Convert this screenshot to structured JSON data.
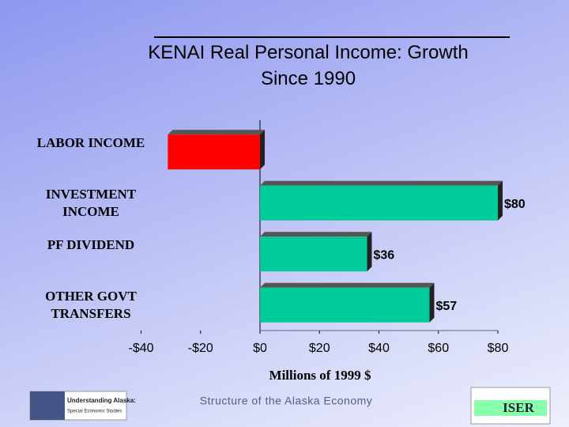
{
  "chart_data": {
    "type": "hbar",
    "title": "KENAI Real Personal Income: Growth Since 1990",
    "categories": [
      "LABOR INCOME",
      "INVESTMENT INCOME",
      "PF DIVIDEND",
      "OTHER GOVT TRANSFERS"
    ],
    "values": [
      -31,
      80,
      36,
      57
    ],
    "value_labels": [
      null,
      "$80",
      "$36",
      "$57"
    ],
    "colors": [
      "#ff0000",
      "#00cc99",
      "#00cc99",
      "#00cc99"
    ],
    "xlim": [
      -40,
      80
    ],
    "xticks": [
      {
        "value": -40,
        "label": "-$40"
      },
      {
        "value": -20,
        "label": "-$20"
      },
      {
        "value": 0,
        "label": "$0"
      },
      {
        "value": 20,
        "label": "$20"
      },
      {
        "value": 40,
        "label": "$40"
      },
      {
        "value": 60,
        "label": "$60"
      },
      {
        "value": 80,
        "label": "$80"
      }
    ],
    "xlabel": "Millions of 1999 $"
  },
  "footer": {
    "left_logo_title": "Understanding Alaska:",
    "left_logo_subtitle": "Special Economic Studies",
    "center": "Structure of the Alaska Economy",
    "right_logo": "ISER"
  }
}
